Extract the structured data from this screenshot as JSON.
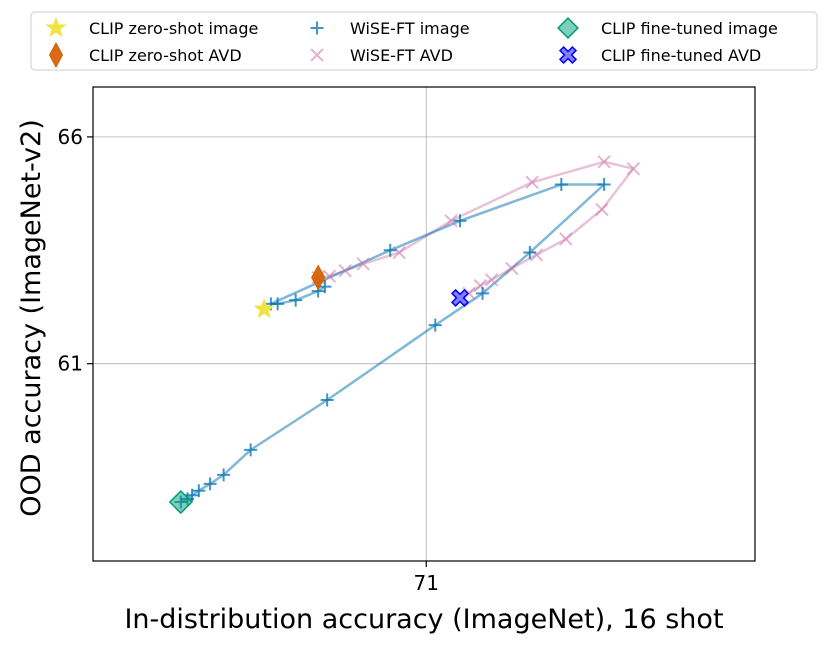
{
  "chart_data": {
    "type": "scatter",
    "xlabel": "In-distribution accuracy (ImageNet), 16 shot",
    "ylabel": "OOD accuracy (ImageNet-v2)",
    "xlim": [
      63.6,
      78.3
    ],
    "ylim": [
      56.65,
      67.1
    ],
    "xticks": [
      71
    ],
    "yticks": [
      61,
      66
    ],
    "grid": true,
    "legend_position": "top",
    "series": [
      {
        "name": "CLIP zero-shot image",
        "marker": "star",
        "color": "#f0e442",
        "points": [
          [
            67.4,
            62.2
          ]
        ]
      },
      {
        "name": "CLIP zero-shot AVD",
        "marker": "thin-diamond",
        "color": "#d55e00",
        "points": [
          [
            68.6,
            62.9
          ]
        ]
      },
      {
        "name": "WiSE-FT image",
        "marker": "plus",
        "color": "#0072b2",
        "line": true,
        "points": [
          [
            68.75,
            62.7
          ],
          [
            68.6,
            62.6
          ],
          [
            68.1,
            62.4
          ],
          [
            67.7,
            62.32
          ],
          [
            67.55,
            62.32
          ],
          [
            70.2,
            63.5
          ],
          [
            71.75,
            64.15
          ],
          [
            74.0,
            64.95
          ],
          [
            74.95,
            64.95
          ],
          [
            73.3,
            63.45
          ],
          [
            72.25,
            62.55
          ],
          [
            71.2,
            61.85
          ],
          [
            68.8,
            60.2
          ],
          [
            67.1,
            59.1
          ],
          [
            66.5,
            58.55
          ],
          [
            66.2,
            58.35
          ],
          [
            65.95,
            58.2
          ],
          [
            65.8,
            58.1
          ],
          [
            65.7,
            58.02
          ],
          [
            65.55,
            57.95
          ]
        ]
      },
      {
        "name": "WiSE-FT AVD",
        "marker": "x",
        "color": "#cc79a7",
        "line": true,
        "points": [
          [
            68.6,
            62.9
          ],
          [
            68.85,
            62.93
          ],
          [
            69.2,
            63.05
          ],
          [
            69.6,
            63.2
          ],
          [
            70.4,
            63.45
          ],
          [
            71.55,
            64.15
          ],
          [
            73.35,
            65.0
          ],
          [
            74.95,
            65.45
          ],
          [
            75.6,
            65.3
          ],
          [
            74.9,
            64.4
          ],
          [
            74.1,
            63.75
          ],
          [
            73.45,
            63.4
          ],
          [
            72.9,
            63.1
          ],
          [
            72.45,
            62.85
          ],
          [
            72.2,
            62.72
          ],
          [
            71.95,
            62.55
          ]
        ]
      },
      {
        "name": "CLIP fine-tuned image",
        "marker": "diamond",
        "color": "#009e73",
        "points": [
          [
            65.55,
            57.95
          ]
        ]
      },
      {
        "name": "CLIP fine-tuned AVD",
        "marker": "filled-x",
        "color": "#0000ff",
        "points": [
          [
            71.75,
            62.45
          ]
        ]
      }
    ]
  }
}
